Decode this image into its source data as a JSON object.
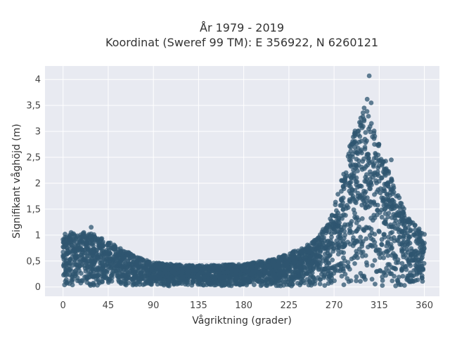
{
  "chart_data": {
    "type": "scatter",
    "title_lines": [
      "År 1979 - 2019",
      "Koordinat (Sweref 99 TM): E 356922, N 6260121"
    ],
    "xlabel": "Vågriktning (grader)",
    "ylabel": "Signifikant våghöjd (m)",
    "xlim": [
      -18,
      375
    ],
    "ylim": [
      -0.18,
      4.26
    ],
    "x_ticks": [
      0,
      45,
      90,
      135,
      180,
      225,
      270,
      315,
      360
    ],
    "y_ticks": [
      0,
      0.5,
      1,
      1.5,
      2,
      2.5,
      3,
      3.5,
      4
    ],
    "y_tick_labels": [
      "0",
      "0,5",
      "1",
      "1,5",
      "2",
      "2,5",
      "3",
      "3,5",
      "4"
    ],
    "grid": true,
    "marker_color": "#2f5670",
    "plot_background": "#e8eaf1",
    "envelope": {
      "direction_deg": [
        0,
        15,
        30,
        45,
        60,
        75,
        90,
        120,
        150,
        180,
        210,
        240,
        255,
        270,
        285,
        300,
        315,
        330,
        345,
        360
      ],
      "max_height_m": [
        0.95,
        1.05,
        1.0,
        0.85,
        0.7,
        0.55,
        0.45,
        0.4,
        0.4,
        0.42,
        0.52,
        0.75,
        0.95,
        1.5,
        2.7,
        3.5,
        2.8,
        1.9,
        1.3,
        1.0
      ]
    },
    "outliers": [
      [
        305,
        4.07
      ],
      [
        303,
        3.62
      ],
      [
        307,
        3.55
      ],
      [
        300,
        3.45
      ],
      [
        28,
        1.15
      ],
      [
        8,
        1.05
      ],
      [
        2,
        1.02
      ],
      [
        327,
        2.45
      ],
      [
        355,
        1.05
      ],
      [
        248,
        0.85
      ]
    ]
  }
}
